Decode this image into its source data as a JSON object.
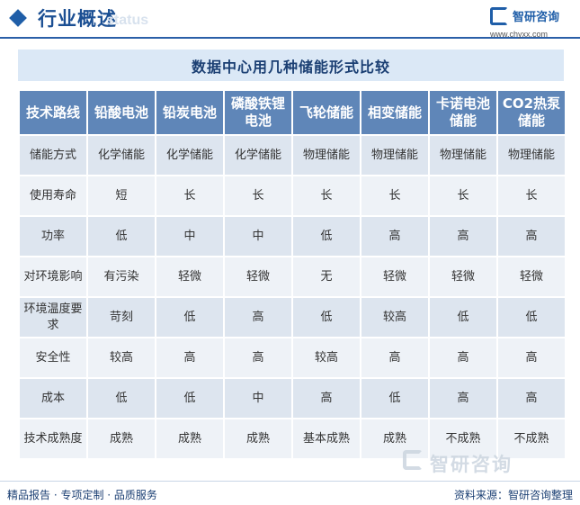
{
  "header": {
    "title": "行业概述",
    "ghost_text": "status",
    "brand_name": "智研咨询",
    "brand_url": "www.chyxx.com"
  },
  "table": {
    "title": "数据中心用几种储能形式比较",
    "headers": [
      "技术路线",
      "铅酸电池",
      "铅炭电池",
      "磷酸铁锂电池",
      "飞轮储能",
      "相变储能",
      "卡诺电池储能",
      "CO2热泵储能"
    ],
    "rows": [
      [
        "储能方式",
        "化学储能",
        "化学储能",
        "化学储能",
        "物理储能",
        "物理储能",
        "物理储能",
        "物理储能"
      ],
      [
        "使用寿命",
        "短",
        "长",
        "长",
        "长",
        "长",
        "长",
        "长"
      ],
      [
        "功率",
        "低",
        "中",
        "中",
        "低",
        "高",
        "高",
        "高"
      ],
      [
        "对环境影响",
        "有污染",
        "轻微",
        "轻微",
        "无",
        "轻微",
        "轻微",
        "轻微"
      ],
      [
        "环境温度要求",
        "苛刻",
        "低",
        "高",
        "低",
        "较高",
        "低",
        "低"
      ],
      [
        "安全性",
        "较高",
        "高",
        "高",
        "较高",
        "高",
        "高",
        "高"
      ],
      [
        "成本",
        "低",
        "低",
        "中",
        "高",
        "低",
        "高",
        "高"
      ],
      [
        "技术成熟度",
        "成熟",
        "成熟",
        "成熟",
        "基本成熟",
        "成熟",
        "不成熟",
        "不成熟"
      ]
    ]
  },
  "footer": {
    "left": "精品报告 · 专项定制 · 品质服务",
    "right": "资料来源：智研咨询整理",
    "watermark": "智研咨询"
  }
}
